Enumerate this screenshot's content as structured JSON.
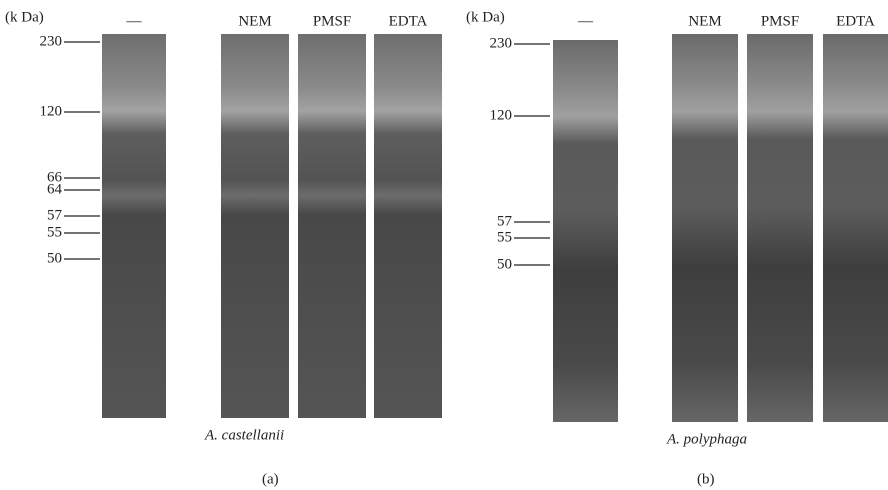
{
  "panels": [
    {
      "label": "(a)",
      "unit": "(k Da)",
      "species": "A. castellanii",
      "markers": [
        "230",
        "120",
        "66",
        "64",
        "57",
        "55",
        "50"
      ],
      "lanes": [
        "—",
        "NEM",
        "PMSF",
        "EDTA"
      ]
    },
    {
      "label": "(b)",
      "unit": "(k Da)",
      "species": "A. polyphaga",
      "markers": [
        "230",
        "120",
        "57",
        "55",
        "50"
      ],
      "lanes": [
        "—",
        "NEM",
        "PMSF",
        "EDTA"
      ]
    }
  ]
}
